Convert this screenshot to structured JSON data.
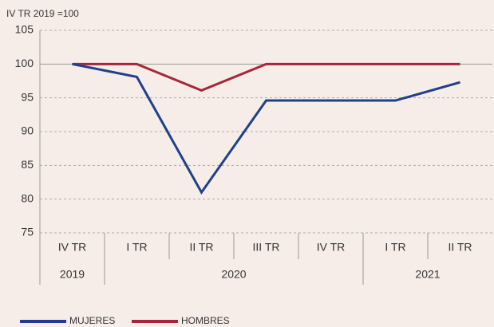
{
  "chart_data": {
    "type": "line",
    "ylabel": "IV TR 2019 =100",
    "categories": [
      "IV TR",
      "I TR",
      "II TR",
      "III TR",
      "IV TR",
      "I TR",
      "II TR"
    ],
    "groups": [
      {
        "label": "2019",
        "size": 1
      },
      {
        "label": "2020",
        "size": 4
      },
      {
        "label": "2021",
        "size": 2
      }
    ],
    "series": [
      {
        "name": "MUJERES",
        "color": "#1f3f8a",
        "values": [
          100,
          98.1,
          81,
          94.6,
          94.6,
          94.6,
          97.3
        ]
      },
      {
        "name": "HOMBRES",
        "color": "#a3283c",
        "values": [
          100,
          100,
          96.1,
          100,
          100,
          100,
          100
        ]
      }
    ],
    "ylim": [
      75,
      105
    ],
    "yticks": [
      75,
      80,
      85,
      90,
      95,
      100,
      105
    ],
    "grid": true,
    "reference_line": 100,
    "legend": "bottom-left"
  }
}
